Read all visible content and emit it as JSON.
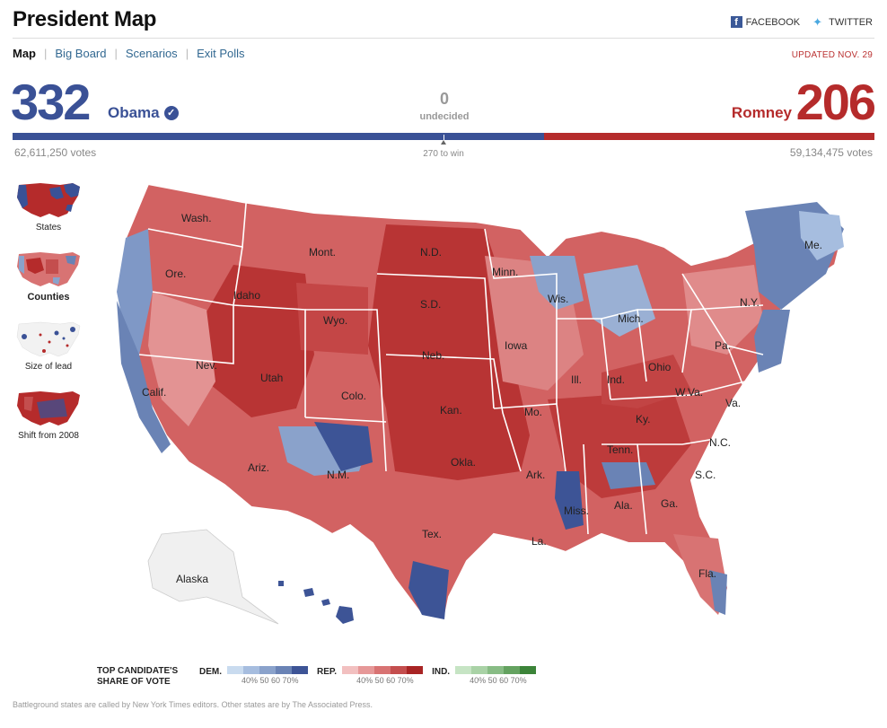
{
  "header": {
    "title": "President Map",
    "share": {
      "facebook": "FACEBOOK",
      "twitter": "TWITTER"
    },
    "updated": "UPDATED NOV. 29"
  },
  "nav": {
    "tabs": [
      {
        "label": "Map",
        "active": true
      },
      {
        "label": "Big Board",
        "active": false
      },
      {
        "label": "Scenarios",
        "active": false
      },
      {
        "label": "Exit Polls",
        "active": false
      }
    ]
  },
  "results": {
    "obama": {
      "electoral": "332",
      "name": "Obama",
      "votes": "62,611,250 votes",
      "color": "#3a5196"
    },
    "romney": {
      "electoral": "206",
      "name": "Romney",
      "votes": "59,134,475 votes",
      "color": "#b52b2b"
    },
    "undecided": {
      "count": "0",
      "label": "undecided"
    },
    "to_win": "270 to win",
    "obama_share_of_538": 0.617
  },
  "views": [
    {
      "label": "States",
      "active": false
    },
    {
      "label": "Counties",
      "active": true
    },
    {
      "label": "Size of lead",
      "active": false
    },
    {
      "label": "Shift from 2008",
      "active": false
    }
  ],
  "map": {
    "state_labels": [
      "Wash.",
      "Ore.",
      "Calif.",
      "Idaho",
      "Nev.",
      "Utah",
      "Ariz.",
      "Mont.",
      "Wyo.",
      "Colo.",
      "N.M.",
      "N.D.",
      "S.D.",
      "Neb.",
      "Kan.",
      "Okla.",
      "Tex.",
      "Minn.",
      "Iowa",
      "Mo.",
      "Ark.",
      "La.",
      "Wis.",
      "Ill.",
      "Miss.",
      "Mich.",
      "Ind.",
      "Ky.",
      "Tenn.",
      "Ala.",
      "Ohio",
      "W.Va.",
      "Ga.",
      "Fla.",
      "Pa.",
      "Va.",
      "N.C.",
      "S.C.",
      "N.Y.",
      "Me.",
      "Alaska"
    ],
    "colors": {
      "dem_dark": "#3a5196",
      "rep_dark": "#b52b2b",
      "rep_light": "#e8999a",
      "dem_light": "#9ab0d4"
    }
  },
  "legend": {
    "title": "TOP CANDIDATE'S SHARE OF VOTE",
    "dem": {
      "label": "DEM.",
      "colors": [
        "#c9dbef",
        "#a6bddf",
        "#8aa2cb",
        "#6a83b5",
        "#3d5496"
      ]
    },
    "rep": {
      "label": "REP.",
      "colors": [
        "#f2c0c0",
        "#e69898",
        "#d87373",
        "#c44e4e",
        "#a82424"
      ]
    },
    "ind": {
      "label": "IND.",
      "colors": [
        "#c6e4c4",
        "#a9d2a6",
        "#88bc85",
        "#64a260",
        "#3c8439"
      ]
    },
    "ticks": "40% 50   60 70%"
  },
  "footnote": "Battleground states are called by New York Times editors. Other states are by The Associated Press."
}
